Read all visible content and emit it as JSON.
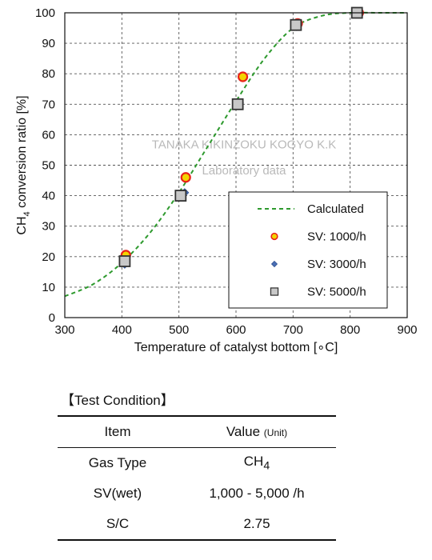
{
  "chart_data": {
    "type": "scatter",
    "xlabel": "Temperature of catalyst bottom [∘C]",
    "ylabel": {
      "prefix": "CH",
      "sub": "4",
      "suffix": " conversion ratio [%]"
    },
    "xlim": [
      300,
      900
    ],
    "ylim": [
      0,
      100
    ],
    "xticks": [
      300,
      400,
      500,
      600,
      700,
      800,
      900
    ],
    "yticks": [
      0,
      10,
      20,
      30,
      40,
      50,
      60,
      70,
      80,
      90,
      100
    ],
    "grid": true,
    "legend_position": "bottom-right",
    "watermark": [
      "TANAKA KIKINZOKU KOGYO K.K",
      "Laboratory data"
    ],
    "series": [
      {
        "name": "Calculated",
        "kind": "dashed-line",
        "color": "#2e9a2e",
        "x": [
          300,
          350,
          400,
          450,
          500,
          550,
          600,
          650,
          700,
          750,
          800,
          850,
          900
        ],
        "y": [
          7,
          11,
          18,
          28,
          41,
          56,
          71,
          85,
          95,
          99,
          100,
          100,
          100
        ]
      },
      {
        "name": "SV: 1000/h",
        "kind": "circle",
        "color": "#e8231a",
        "fill": "#f3d400",
        "x": [
          407,
          512,
          612,
          708,
          815
        ],
        "y": [
          20.5,
          46,
          79,
          96.5,
          100
        ]
      },
      {
        "name": "SV: 3000/h",
        "kind": "diamond",
        "color": "#4a6fb5",
        "x": [
          405,
          510,
          606,
          706,
          812
        ],
        "y": [
          17.5,
          41,
          70.5,
          95.5,
          100
        ]
      },
      {
        "name": "SV: 5000/h",
        "kind": "square",
        "color": "#333333",
        "fill": "#c8c8c8",
        "x": [
          405,
          503,
          603,
          705,
          812
        ],
        "y": [
          18.5,
          40,
          70,
          96,
          100
        ]
      }
    ]
  },
  "test_condition": {
    "title": "【Test Condition】",
    "header": {
      "item": "Item",
      "value": "Value",
      "unit": "(Unit)"
    },
    "rows": [
      {
        "item": "Gas Type",
        "value": "CH",
        "value_sub": "4"
      },
      {
        "item": "SV(wet)",
        "value": "1,000 - 5,000 /h",
        "value_sub": ""
      },
      {
        "item": "S/C",
        "value": "2.75",
        "value_sub": ""
      }
    ]
  }
}
